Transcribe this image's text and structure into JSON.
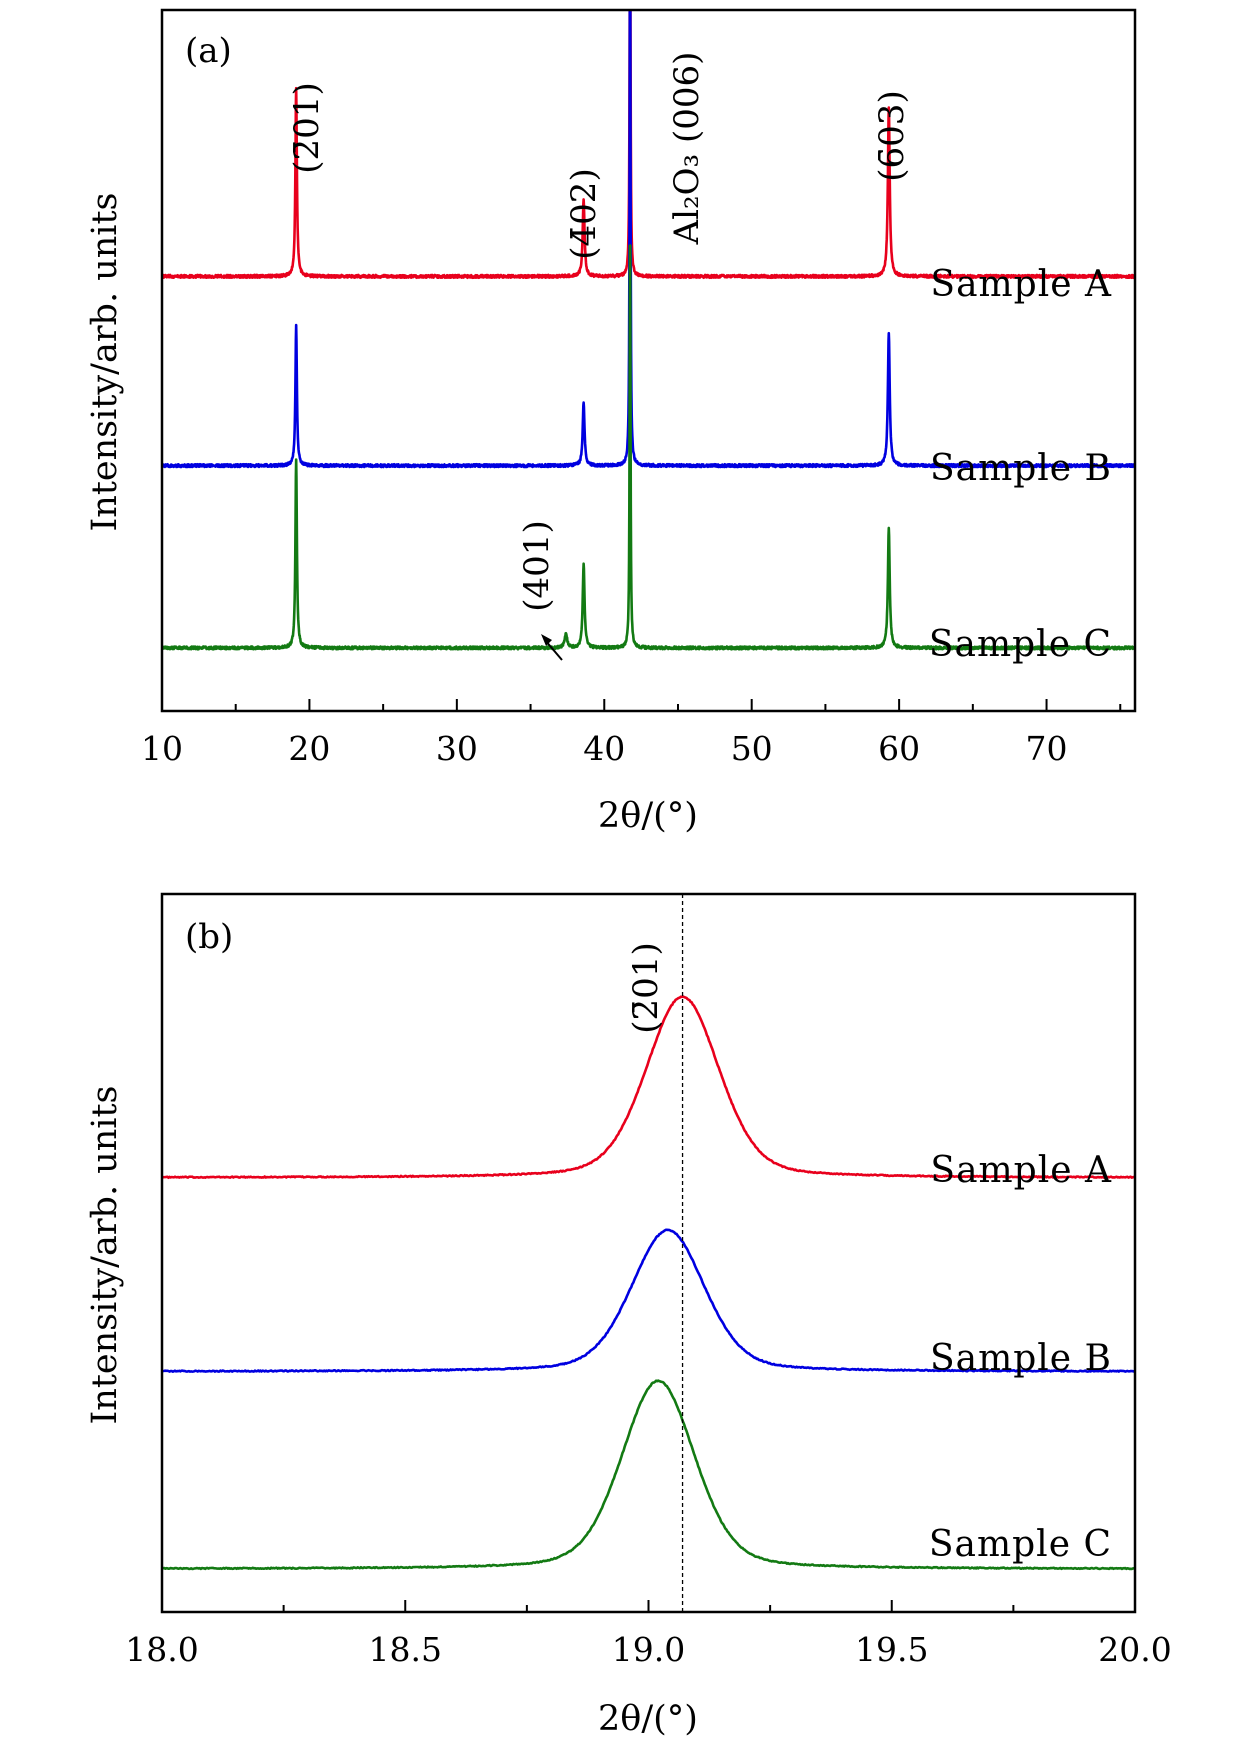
{
  "chart_data": [
    {
      "panel_label": "(a)",
      "type": "line",
      "xlabel": "2θ/(°)",
      "ylabel": "Intensity/arb. units",
      "xlim": [
        10,
        76
      ],
      "x_ticks": [
        10,
        20,
        30,
        40,
        50,
        60,
        70
      ],
      "x_minor_step": 5,
      "grid": false,
      "series": [
        {
          "name": "Sample A",
          "color": "#e8001c",
          "offset": 0.62,
          "peaks": [
            [
              19.1,
              0.27,
              0.12
            ],
            [
              38.6,
              0.11,
              0.15
            ],
            [
              41.75,
              0.62,
              0.07
            ],
            [
              59.3,
              0.24,
              0.15
            ]
          ]
        },
        {
          "name": "Sample B",
          "color": "#0000e0",
          "offset": 0.35,
          "peaks": [
            [
              19.1,
              0.2,
              0.12
            ],
            [
              38.6,
              0.09,
              0.15
            ],
            [
              41.75,
              0.82,
              0.07
            ],
            [
              59.3,
              0.19,
              0.15
            ]
          ]
        },
        {
          "name": "Sample C",
          "color": "#137a13",
          "offset": 0.09,
          "peaks": [
            [
              19.1,
              0.27,
              0.12
            ],
            [
              37.4,
              0.02,
              0.2
            ],
            [
              38.6,
              0.12,
              0.15
            ],
            [
              41.75,
              0.62,
              0.07
            ],
            [
              59.3,
              0.17,
              0.15
            ]
          ]
        }
      ],
      "annotations": [
        {
          "text": "(2̄01)",
          "x": 19.1
        },
        {
          "text": "(4̄02)",
          "x": 38.6
        },
        {
          "text": "Al₂O₃ (006)",
          "x": 43.5
        },
        {
          "text": "(6̄03)",
          "x": 59.3
        },
        {
          "text": "(401)",
          "x": 37.4
        }
      ]
    },
    {
      "panel_label": "(b)",
      "type": "line",
      "xlabel": "2θ/(°)",
      "ylabel": "Intensity/arb. units",
      "xlim": [
        18.0,
        20.0
      ],
      "x_ticks": [
        "18.0",
        "18.5",
        "19.0",
        "19.5",
        "20.0"
      ],
      "x_minor_step": 0.25,
      "grid": false,
      "reference_line_x": 19.07,
      "series": [
        {
          "name": "Sample A",
          "color": "#e8001c",
          "offset": 0.605,
          "peak_x": 19.07,
          "peak_height": 0.252
        },
        {
          "name": "Sample B",
          "color": "#0000e0",
          "offset": 0.335,
          "peak_x": 19.04,
          "peak_height": 0.197
        },
        {
          "name": "Sample C",
          "color": "#137a13",
          "offset": 0.06,
          "peak_x": 19.02,
          "peak_height": 0.262
        }
      ],
      "annotations": [
        {
          "text": "(2̄01)",
          "x": 19.07
        }
      ]
    }
  ]
}
